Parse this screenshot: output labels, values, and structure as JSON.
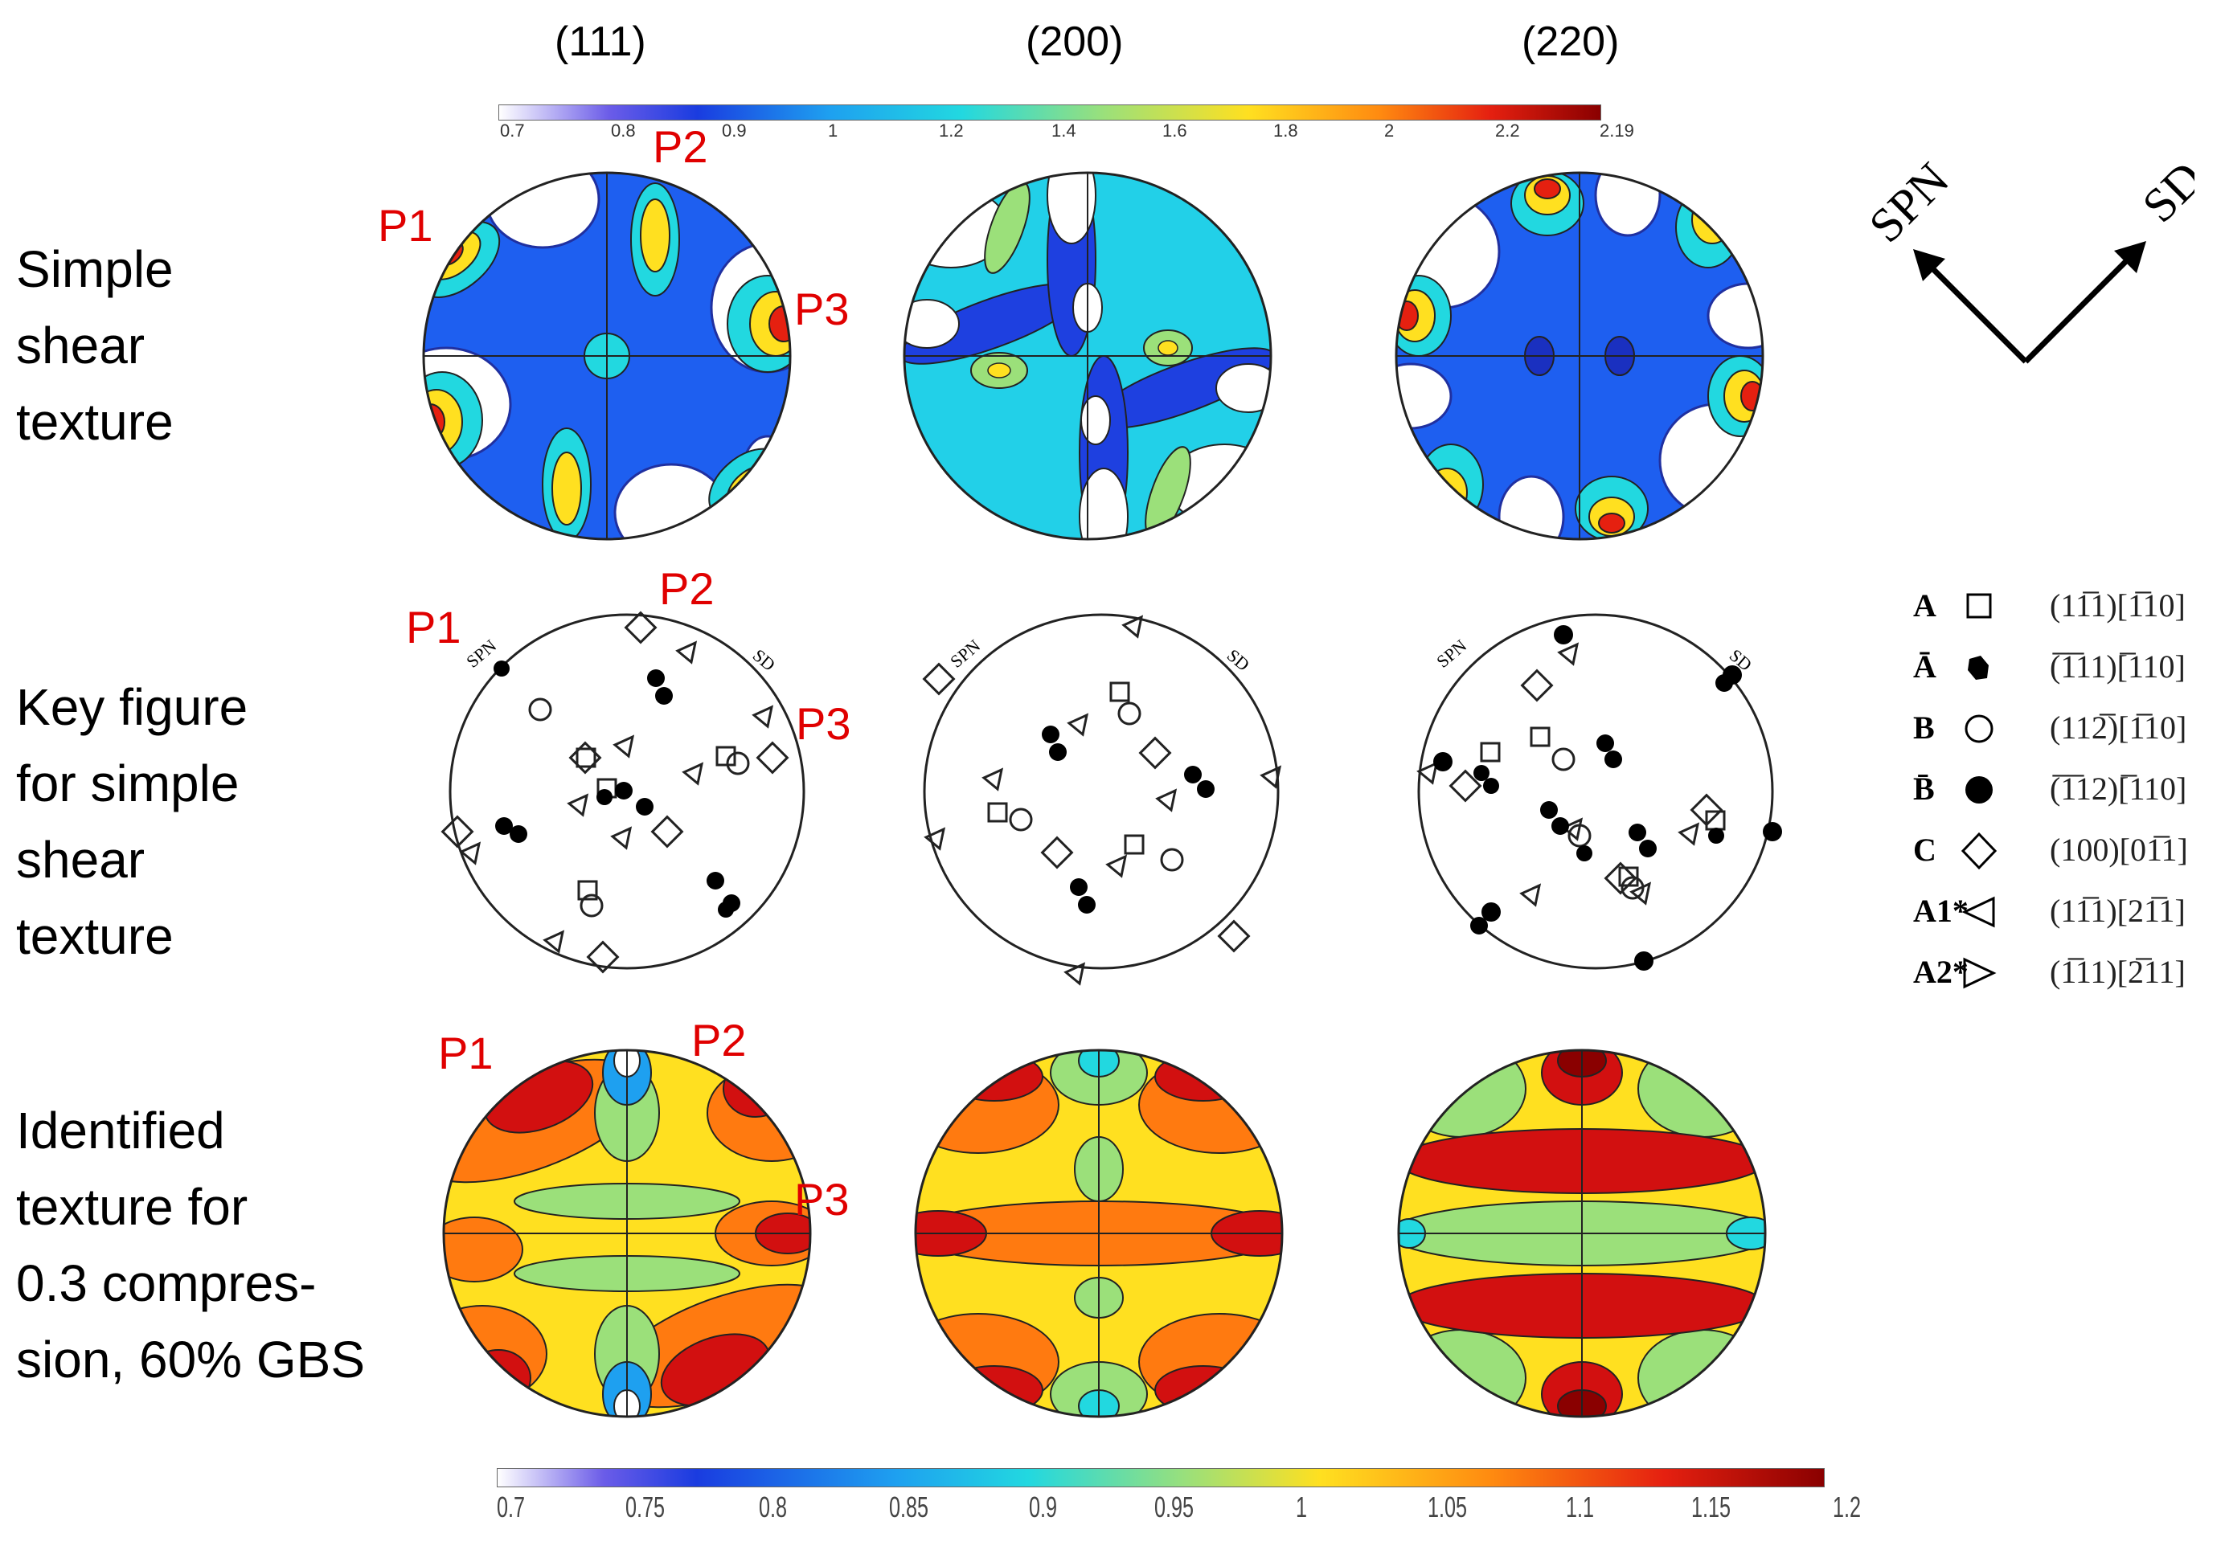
{
  "columns": [
    "(111)",
    "(200)",
    "(220)"
  ],
  "rows": [
    {
      "label_lines": [
        "Simple",
        "shear",
        "texture"
      ]
    },
    {
      "label_lines": [
        "Key figure",
        "for simple",
        "shear",
        "texture"
      ]
    },
    {
      "label_lines": [
        "Identified",
        "texture for",
        "0.3 compres-",
        "sion, 60% GBS"
      ]
    }
  ],
  "peaks": [
    "P1",
    "P2",
    "P3"
  ],
  "top_colorbar": {
    "ticks": [
      "0.7",
      "0.8",
      "0.9",
      "1",
      "1.2",
      "1.4",
      "1.6",
      "1.8",
      "2",
      "2.2",
      "2.19"
    ]
  },
  "bottom_colorbar": {
    "ticks": [
      "0.7",
      "0.75",
      "0.8",
      "0.85",
      "0.9",
      "0.95",
      "1",
      "1.05",
      "1.1",
      "1.15",
      "1.2"
    ]
  },
  "axes": {
    "spn": "SPN",
    "sd": "SD"
  },
  "key_labels": {
    "spn": "SPN",
    "sd": "SD"
  },
  "legend": [
    {
      "key": "A",
      "symbol": "square-open",
      "miller": "(11̅1)[1̅10]"
    },
    {
      "key": "Ā",
      "symbol": "hex-filled",
      "miller": "(̅1̅11)[̅110]"
    },
    {
      "key": "B",
      "symbol": "circle-open",
      "miller": "(112̅)[1̅10]"
    },
    {
      "key": "B̄",
      "symbol": "circle-filled",
      "miller": "(̅1̅12)[̅110]"
    },
    {
      "key": "C",
      "symbol": "diamond-open",
      "miller": "(100)[01̅1]"
    },
    {
      "key": "A1*",
      "symbol": "triangle-left",
      "miller": "(11̅1)[21̅1]"
    },
    {
      "key": "A2*",
      "symbol": "triangle-right",
      "miller": "(1̅11)[2̅11]"
    }
  ],
  "colors": {
    "peak_label": "#e00000"
  }
}
